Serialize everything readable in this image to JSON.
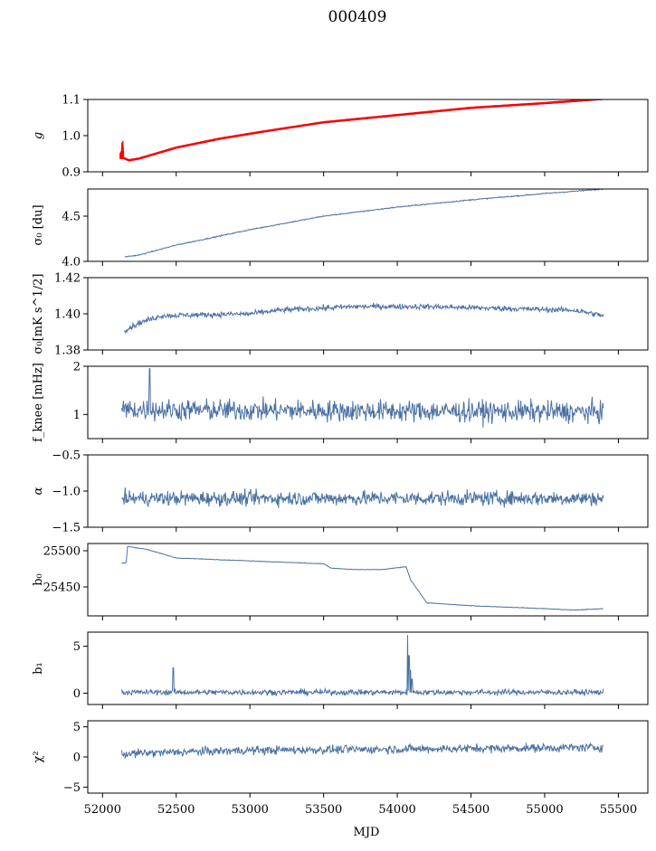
{
  "chart_data": {
    "type": "line",
    "title": "000409",
    "xlabel": "MJD",
    "xlim": [
      51900,
      55700
    ],
    "x_ticks": [
      52000,
      52500,
      53000,
      53500,
      54000,
      54500,
      55000,
      55500
    ],
    "x_tick_labels": [
      "52000",
      "52500",
      "53000",
      "53500",
      "54000",
      "54500",
      "55000",
      "55500"
    ],
    "series_color": "#4c72a4",
    "highlight_color": "#ff0000",
    "panels": [
      {
        "key": "g",
        "ylabel": "g",
        "ylabel_italic": true,
        "ylim": [
          0.9,
          1.1
        ],
        "yticks": [
          "1.1",
          "1.0",
          "0.9"
        ],
        "ytick_values": [
          1.1,
          1.0,
          0.9
        ],
        "x_range": [
          52120,
          55400
        ],
        "approx_points": [
          [
            52120,
            0.94
          ],
          [
            52180,
            0.93
          ],
          [
            52250,
            0.935
          ],
          [
            52500,
            0.965
          ],
          [
            52800,
            0.99
          ],
          [
            53100,
            1.01
          ],
          [
            53500,
            1.035
          ],
          [
            54000,
            1.055
          ],
          [
            54500,
            1.075
          ],
          [
            55000,
            1.088
          ],
          [
            55400,
            1.1
          ]
        ],
        "red_overlay": true,
        "noise": 0.0
      },
      {
        "key": "sigma0_du",
        "ylabel": "σ₀ [du]",
        "ylim": [
          4.0,
          4.8
        ],
        "yticks": [
          "4.5",
          "4.0"
        ],
        "ytick_values": [
          4.5,
          4.0
        ],
        "x_range": [
          52150,
          55400
        ],
        "approx_points": [
          [
            52150,
            4.05
          ],
          [
            52250,
            4.07
          ],
          [
            52500,
            4.18
          ],
          [
            53000,
            4.35
          ],
          [
            53500,
            4.5
          ],
          [
            54000,
            4.6
          ],
          [
            54500,
            4.68
          ],
          [
            55000,
            4.75
          ],
          [
            55400,
            4.8
          ]
        ],
        "noise": 0.006
      },
      {
        "key": "sigma0_mk",
        "ylabel": "σ₀[mK s^1/2]",
        "ylim": [
          1.38,
          1.42
        ],
        "yticks": [
          "1.42",
          "1.40",
          "1.38"
        ],
        "ytick_values": [
          1.42,
          1.4,
          1.38
        ],
        "x_range": [
          52150,
          55400
        ],
        "approx_points": [
          [
            52150,
            1.391
          ],
          [
            52250,
            1.395
          ],
          [
            52400,
            1.399
          ],
          [
            53000,
            1.4
          ],
          [
            53200,
            1.402
          ],
          [
            53700,
            1.404
          ],
          [
            54200,
            1.404
          ],
          [
            54700,
            1.403
          ],
          [
            55200,
            1.402
          ],
          [
            55400,
            1.399
          ]
        ],
        "noise": 0.0015
      },
      {
        "key": "f_knee",
        "ylabel": "f_knee [mHz]",
        "ylim": [
          0.5,
          2.0
        ],
        "yticks": [
          "2",
          "1"
        ],
        "ytick_values": [
          2,
          1
        ],
        "x_range": [
          52130,
          55400
        ],
        "approx_points": [
          [
            52130,
            1.1
          ],
          [
            55400,
            1.05
          ]
        ],
        "noise": 0.22,
        "spikes": [
          [
            52320,
            1.95
          ]
        ]
      },
      {
        "key": "alpha",
        "ylabel": "α",
        "ylabel_italic": true,
        "ylim": [
          -1.5,
          -0.5
        ],
        "yticks": [
          "−0.5",
          "−1.0",
          "−1.5"
        ],
        "ytick_values": [
          -0.5,
          -1.0,
          -1.5
        ],
        "x_range": [
          52130,
          55400
        ],
        "approx_points": [
          [
            52130,
            -1.1
          ],
          [
            55400,
            -1.1
          ]
        ],
        "noise": 0.1
      },
      {
        "key": "b0",
        "ylabel": "b₀",
        "ylim": [
          25410,
          25510
        ],
        "yticks": [
          "25500",
          "25450"
        ],
        "ytick_values": [
          25500,
          25450
        ],
        "x_range": [
          52130,
          55400
        ],
        "approx_points": [
          [
            52130,
            25483
          ],
          [
            52160,
            25483
          ],
          [
            52170,
            25506
          ],
          [
            52300,
            25502
          ],
          [
            52500,
            25490
          ],
          [
            53000,
            25486
          ],
          [
            53500,
            25482
          ],
          [
            53550,
            25476
          ],
          [
            53700,
            25474
          ],
          [
            53900,
            25474
          ],
          [
            54060,
            25478
          ],
          [
            54090,
            25460
          ],
          [
            54200,
            25428
          ],
          [
            54500,
            25424
          ],
          [
            55000,
            25420
          ],
          [
            55200,
            25418
          ],
          [
            55400,
            25420
          ]
        ],
        "noise": 0.4
      },
      {
        "key": "b1",
        "ylabel": "b₁",
        "ylim": [
          -1.2,
          6.5
        ],
        "yticks": [
          "5",
          "0"
        ],
        "ytick_values": [
          5,
          0
        ],
        "x_range": [
          52130,
          55400
        ],
        "approx_points": [
          [
            52130,
            0.1
          ],
          [
            55400,
            0.1
          ]
        ],
        "noise": 0.3,
        "spikes": [
          [
            52480,
            2.7
          ],
          [
            54070,
            6.2
          ],
          [
            54080,
            4.0
          ],
          [
            54090,
            2.5
          ],
          [
            54100,
            1.5
          ]
        ]
      },
      {
        "key": "chi2",
        "ylabel": "χ²",
        "ylim": [
          -6,
          6
        ],
        "yticks": [
          "5",
          "0",
          "−5"
        ],
        "ytick_values": [
          5,
          0,
          -5
        ],
        "x_range": [
          52130,
          55400
        ],
        "approx_points": [
          [
            52130,
            0.5
          ],
          [
            52500,
            0.8
          ],
          [
            53000,
            1.1
          ],
          [
            54000,
            1.3
          ],
          [
            55000,
            1.5
          ],
          [
            55400,
            1.6
          ]
        ],
        "noise": 0.7
      }
    ]
  }
}
